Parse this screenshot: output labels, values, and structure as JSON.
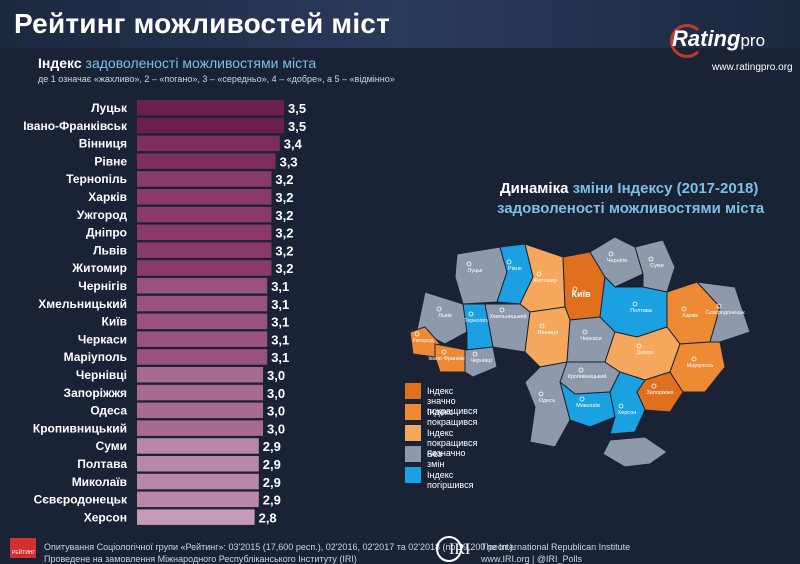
{
  "header": {
    "title": "Рейтинг можливостей міст",
    "logo_main": "Rating",
    "logo_pro": "pro",
    "logo_url": "www.ratingpro.org"
  },
  "left_chart": {
    "title_bold": "Індекс",
    "title_rest": " задоволеності можливостями міста",
    "subtitle": "де 1 означає «жахливо», 2 – «погано», 3 – «середньо», 4 – «добре», а 5 – «відмінно»"
  },
  "chart_data": {
    "type": "bar",
    "orientation": "horizontal",
    "categories": [
      "Луцьк",
      "Івано-Франківськ",
      "Вінниця",
      "Рівне",
      "Тернопіль",
      "Харків",
      "Ужгород",
      "Дніпро",
      "Львів",
      "Житомир",
      "Чернігів",
      "Хмельницький",
      "Київ",
      "Черкаси",
      "Маріуполь",
      "Чернівці",
      "Запоріжжя",
      "Одеса",
      "Кропивницький",
      "Суми",
      "Полтава",
      "Миколаїв",
      "Сєвєродонецьк",
      "Херсон"
    ],
    "values": [
      3.5,
      3.5,
      3.4,
      3.3,
      3.2,
      3.2,
      3.2,
      3.2,
      3.2,
      3.2,
      3.1,
      3.1,
      3.1,
      3.1,
      3.1,
      3.0,
      3.0,
      3.0,
      3.0,
      2.9,
      2.9,
      2.9,
      2.9,
      2.8
    ],
    "value_labels": [
      "3,5",
      "3,5",
      "3,4",
      "3,3",
      "3,2",
      "3,2",
      "3,2",
      "3,2",
      "3,2",
      "3,2",
      "3,1",
      "3,1",
      "3,1",
      "3,1",
      "3,1",
      "3,0",
      "3,0",
      "3,0",
      "3,0",
      "2,9",
      "2,9",
      "2,9",
      "2,9",
      "2,8"
    ],
    "colors": [
      "#6b1f4e",
      "#6b1f4e",
      "#7d2e5e",
      "#7d2e5e",
      "#8a3a6a",
      "#8a3a6a",
      "#8a3a6a",
      "#8a3a6a",
      "#8a3a6a",
      "#8a3a6a",
      "#9a5080",
      "#9a5080",
      "#9a5080",
      "#9a5080",
      "#9a5080",
      "#a86a90",
      "#a86a90",
      "#a86a90",
      "#a86a90",
      "#b987a8",
      "#b987a8",
      "#b987a8",
      "#b987a8",
      "#c49ab6"
    ],
    "xlim": [
      0,
      3.5
    ]
  },
  "map": {
    "title_bold": "Динаміка",
    "title_rest": " зміни Індексу (2017-2018)",
    "title_line2": "задоволеності можливостями міста",
    "legend": [
      {
        "label": "Індекс значно покращився",
        "color": "#e0701e"
      },
      {
        "label": "Індекс покращився",
        "color": "#ee8a33"
      },
      {
        "label": "Індекс покращився незначно",
        "color": "#f5a85c"
      },
      {
        "label": "Без змін",
        "color": "#8e9aab"
      },
      {
        "label": "Індекс погіршився",
        "color": "#1ba1e2"
      }
    ],
    "region_labels": [
      "Луцьк",
      "Рівне",
      "Житомир",
      "Київ",
      "Чернігів",
      "Суми",
      "Львів",
      "Тернопіль",
      "Хмельницький",
      "Вінниця",
      "Черкаси",
      "Полтава",
      "Харків",
      "Сєвєродонецьк",
      "Ужгород",
      "Івано-Франківськ",
      "Чернівці",
      "Кропивницький",
      "Дніпро",
      "Запоріжжя",
      "Маріуполь",
      "Миколаїв",
      "Одеса",
      "Херсон"
    ]
  },
  "footer": {
    "logo_text": "РЕЙТИНГ",
    "line1": "Опитування Соціологічної групи «Рейтинг»: 03'2015 (17,600 респ.), 02'2016, 02'2017 та 02'2018 (по 19,200 респ.).",
    "line2": "Проведене на замовлення Міжнародного Республіканського Інституту (IRI)",
    "iri_logo": "IRI",
    "iri_name": "The International Republican Institute",
    "iri_site": "www.IRI.org | @IRI_Polls"
  }
}
